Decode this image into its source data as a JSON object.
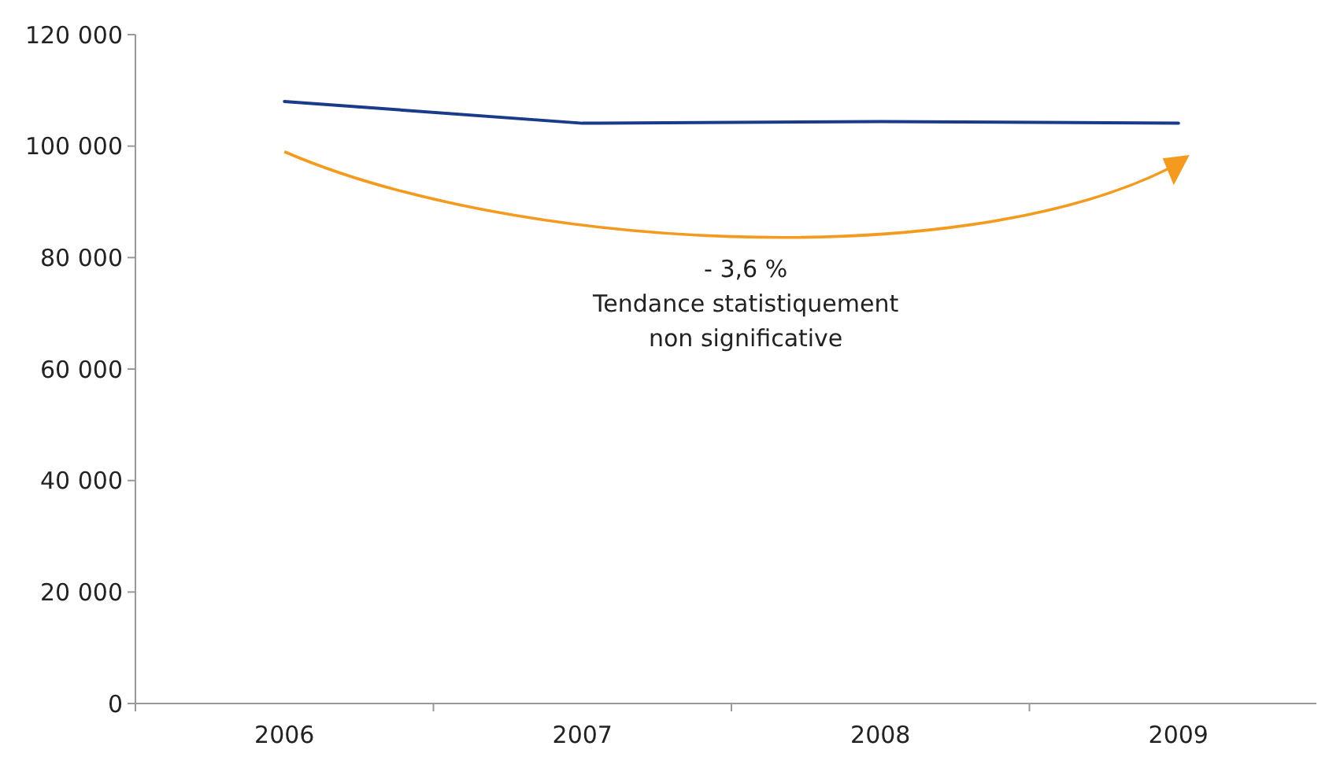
{
  "chart_data": {
    "type": "line",
    "categories": [
      "2006",
      "2007",
      "2008",
      "2009"
    ],
    "series": [
      {
        "color": "#1a3a8a",
        "values": [
          108000,
          104100,
          104400,
          104100
        ]
      }
    ],
    "ylim": [
      0,
      120000
    ],
    "yticks": [
      {
        "value": 0,
        "label": "0"
      },
      {
        "value": 20000,
        "label": "20 000"
      },
      {
        "value": 40000,
        "label": "40 000"
      },
      {
        "value": 60000,
        "label": "60 000"
      },
      {
        "value": 80000,
        "label": "80 000"
      },
      {
        "value": 100000,
        "label": "100 000"
      },
      {
        "value": 120000,
        "label": "120 000"
      }
    ],
    "grid": false,
    "marker": "none",
    "line_style": "solid",
    "annotations": [
      "- 3,6 %",
      "Tendance statistiquement",
      "non significative"
    ]
  }
}
